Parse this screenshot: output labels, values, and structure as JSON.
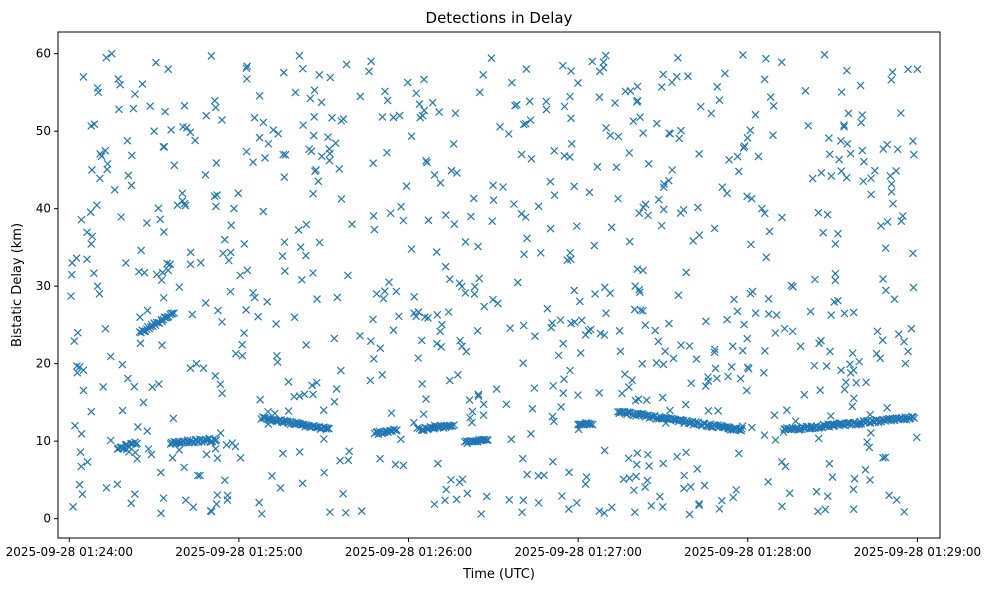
{
  "chart_data": {
    "type": "scatter",
    "title": "Detections in Delay",
    "xlabel": "Time (UTC)",
    "ylabel": "Bistatic Delay (km)",
    "marker": "x",
    "color": "#1f77b4",
    "grid": false,
    "xlim": [
      "2025-09-28 01:23:56",
      "2025-09-28 01:29:08"
    ],
    "ylim": [
      -2.5,
      62.8
    ],
    "x_ticks": [
      "2025-09-28 01:24:00",
      "2025-09-28 01:25:00",
      "2025-09-28 01:26:00",
      "2025-09-28 01:27:00",
      "2025-09-28 01:28:00",
      "2025-09-28 01:29:00"
    ],
    "y_ticks": [
      0,
      10,
      20,
      30,
      40,
      50,
      60
    ],
    "points_shown_count_approx": 1100,
    "series": [
      {
        "x": [
          "2025-09-28 01:24:01",
          "2025-09-28 01:24:03",
          "2025-09-28 01:24:05",
          "2025-09-28 01:24:02",
          "2025-09-28 01:24:08",
          "2025-09-28 01:24:10",
          "2025-09-28 01:24:12",
          "2025-09-28 01:24:15",
          "2025-09-28 01:24:18",
          "2025-09-28 01:24:20",
          "2025-09-28 01:24:22",
          "2025-09-28 01:24:25",
          "2025-09-28 01:24:28",
          "2025-09-28 01:24:30",
          "2025-09-28 01:24:35",
          "2025-09-28 01:24:40",
          "2025-09-28 01:24:45",
          "2025-09-28 01:24:50",
          "2025-09-28 01:24:55",
          "2025-09-28 01:25:05",
          "2025-09-28 01:25:10",
          "2025-09-28 01:25:20",
          "2025-09-28 01:25:30",
          "2025-09-28 01:25:40",
          "2025-09-28 01:25:50",
          "2025-09-28 01:26:05",
          "2025-09-28 01:26:15",
          "2025-09-28 01:26:25",
          "2025-09-28 01:26:40",
          "2025-09-28 01:26:55",
          "2025-09-28 01:27:05",
          "2025-09-28 01:27:20",
          "2025-09-28 01:27:35",
          "2025-09-28 01:27:50",
          "2025-09-28 01:28:05",
          "2025-09-28 01:28:20",
          "2025-09-28 01:28:35",
          "2025-09-28 01:28:50",
          "2025-09-28 01:29:00"
        ],
        "y": [
          33,
          24,
          57,
          12,
          45,
          30,
          17,
          60,
          56,
          33,
          43,
          26,
          9,
          50,
          58,
          41,
          20,
          1,
          36,
          46,
          28,
          55,
          14,
          38,
          22,
          52,
          5,
          31,
          47,
          18,
          59,
          27,
          8,
          54,
          40,
          16,
          44,
          3,
          58
        ]
      }
    ],
    "tracks": [
      {
        "x_start": "2025-09-28 01:24:17",
        "x_end": "2025-09-28 01:24:24",
        "y_start": 9.0,
        "y_end": 9.8
      },
      {
        "x_start": "2025-09-28 01:24:25",
        "x_end": "2025-09-28 01:24:37",
        "y_start": 24.0,
        "y_end": 26.5
      },
      {
        "x_start": "2025-09-28 01:24:36",
        "x_end": "2025-09-28 01:24:52",
        "y_start": 9.8,
        "y_end": 10.2
      },
      {
        "x_start": "2025-09-28 01:25:08",
        "x_end": "2025-09-28 01:25:32",
        "y_start": 13.0,
        "y_end": 11.5
      },
      {
        "x_start": "2025-09-28 01:25:48",
        "x_end": "2025-09-28 01:25:56",
        "y_start": 11.0,
        "y_end": 11.5
      },
      {
        "x_start": "2025-09-28 01:26:04",
        "x_end": "2025-09-28 01:26:16",
        "y_start": 11.5,
        "y_end": 12.0
      },
      {
        "x_start": "2025-09-28 01:26:20",
        "x_end": "2025-09-28 01:26:28",
        "y_start": 9.8,
        "y_end": 10.2
      },
      {
        "x_start": "2025-09-28 01:27:00",
        "x_end": "2025-09-28 01:27:05",
        "y_start": 12.3,
        "y_end": 12.3
      },
      {
        "x_start": "2025-09-28 01:27:14",
        "x_end": "2025-09-28 01:27:58",
        "y_start": 13.8,
        "y_end": 11.4
      },
      {
        "x_start": "2025-09-28 01:28:13",
        "x_end": "2025-09-28 01:28:59",
        "y_start": 11.5,
        "y_end": 13.0
      }
    ]
  }
}
